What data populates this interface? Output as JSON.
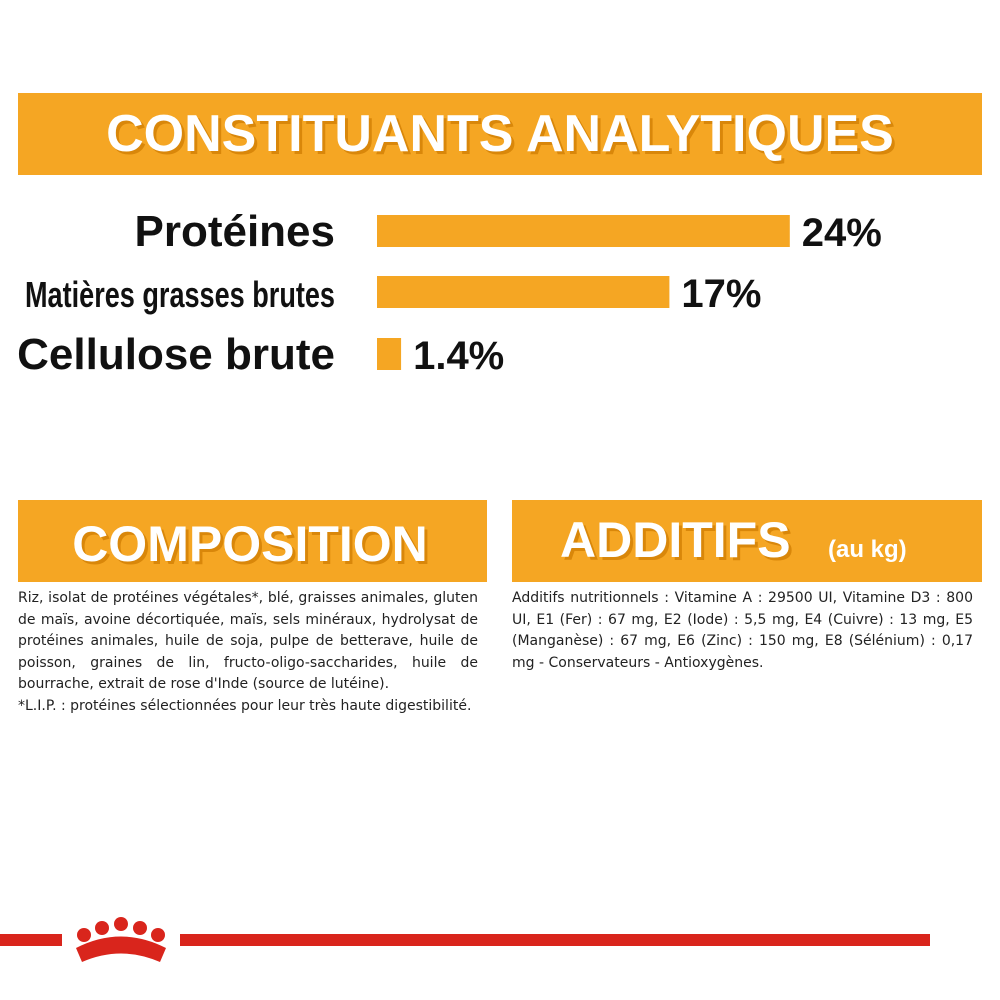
{
  "chart_data": {
    "type": "bar",
    "title": "CONSTITUANTS ANALYTIQUES",
    "categories": [
      "Protéines",
      "Matières grasses brutes",
      "Cellulose brute"
    ],
    "values": [
      24,
      17,
      1.4
    ],
    "value_labels": [
      "24%",
      "17%",
      "1.4%"
    ],
    "color": "#f5a623"
  },
  "composition": {
    "title": "COMPOSITION",
    "text": "Riz, isolat de protéines végétales*, blé, graisses animales, gluten de maïs, avoine décortiquée, maïs, sels minéraux, hydrolysat de protéines animales, huile de soja, pulpe de betterave, huile de poisson, graines de lin, fructo-oligo-saccharides, huile de bourrache, extrait de rose d'Inde (source de lutéine).",
    "note": "*L.I.P. : protéines sélectionnées pour leur très haute digestibilité."
  },
  "additifs": {
    "title": "ADDITIFS",
    "unit": "(au kg)",
    "text": "Additifs nutritionnels : Vitamine A : 29500 UI, Vitamine D3 : 800 UI, E1 (Fer) : 67 mg, E2 (Iode) : 5,5 mg, E4 (Cuivre) : 13 mg, E5 (Manganèse) : 67 mg, E6 (Zinc) : 150 mg, E8 (Sélénium) : 0,17 mg - Conservateurs - Antioxygènes."
  }
}
